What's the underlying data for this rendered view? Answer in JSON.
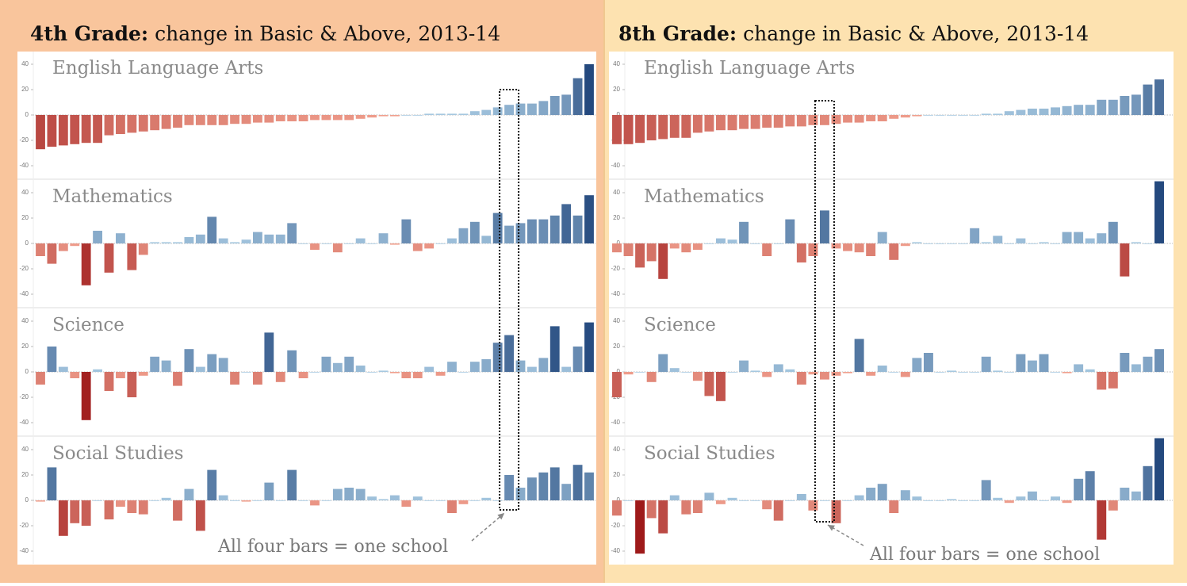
{
  "chart_data": [
    {
      "type": "bar",
      "heading_bold": "4th Grade:",
      "heading": "change in Basic & Above, 2013-14",
      "annotation": "All four bars = one school",
      "highlight_index": 41,
      "ylim": [
        -50,
        50
      ],
      "yticks": [
        -40,
        -20,
        0,
        20,
        40
      ],
      "negative_color": "#9e1a1a",
      "negative_light": "#f2a391",
      "positive_light": "#a9cbe3",
      "positive_color": "#24497e",
      "subplots": [
        {
          "title": "English Language Arts",
          "values": [
            -27,
            -25,
            -24,
            -23,
            -22,
            -22,
            -16,
            -15,
            -14,
            -13,
            -12,
            -11,
            -10,
            -8,
            -8,
            -8,
            -8,
            -7,
            -7,
            -6,
            -6,
            -5,
            -5,
            -5,
            -4,
            -4,
            -4,
            -4,
            -3,
            -2,
            -1,
            -1,
            0,
            0,
            1,
            1,
            1,
            1,
            3,
            4,
            6,
            8,
            9,
            9,
            11,
            15,
            16,
            29,
            40
          ]
        },
        {
          "title": "Mathematics",
          "values": [
            -10,
            -16,
            -6,
            -2,
            -33,
            10,
            -23,
            8,
            -21,
            -9,
            1,
            1,
            1,
            5,
            7,
            21,
            4,
            1,
            3,
            9,
            7,
            7,
            16,
            0,
            -5,
            0,
            -7,
            0,
            4,
            0,
            8,
            -1,
            19,
            -6,
            -4,
            0,
            4,
            12,
            17,
            6,
            24,
            14,
            16,
            19,
            19,
            22,
            31,
            22,
            38
          ]
        },
        {
          "title": "Science",
          "values": [
            -10,
            20,
            4,
            -5,
            -38,
            2,
            -15,
            -5,
            -20,
            -3,
            12,
            9,
            -11,
            18,
            4,
            14,
            11,
            -10,
            0,
            -10,
            31,
            -8,
            17,
            -5,
            0,
            12,
            7,
            12,
            5,
            0,
            1,
            -1,
            -5,
            -5,
            4,
            -3,
            8,
            0,
            8,
            10,
            23,
            29,
            9,
            4,
            11,
            36,
            4,
            20,
            39
          ]
        },
        {
          "title": "Social Studies",
          "values": [
            -1,
            26,
            -28,
            -18,
            -20,
            0,
            -15,
            -5,
            -10,
            -11,
            0,
            2,
            -16,
            9,
            -24,
            24,
            4,
            0,
            -1,
            0,
            14,
            0,
            24,
            0,
            -4,
            0,
            9,
            10,
            9,
            3,
            1,
            4,
            -5,
            3,
            0,
            0,
            -10,
            -3,
            0,
            2,
            0,
            20,
            10,
            18,
            22,
            26,
            13,
            28,
            22
          ]
        }
      ]
    },
    {
      "type": "bar",
      "heading_bold": "8th Grade:",
      "heading": "change in Basic & Above, 2013-14",
      "annotation": "All four bars = one school",
      "highlight_index": 18,
      "ylim": [
        -50,
        50
      ],
      "yticks": [
        -40,
        -20,
        0,
        20,
        40
      ],
      "negative_color": "#9e1a1a",
      "negative_light": "#f2a391",
      "positive_light": "#a9cbe3",
      "positive_color": "#24497e",
      "subplots": [
        {
          "title": "English Language Arts",
          "values": [
            -23,
            -23,
            -22,
            -20,
            -19,
            -18,
            -18,
            -14,
            -13,
            -12,
            -12,
            -11,
            -11,
            -10,
            -10,
            -9,
            -9,
            -8,
            -8,
            -7,
            -6,
            -6,
            -5,
            -5,
            -3,
            -2,
            -1,
            0,
            0,
            0,
            0,
            0,
            1,
            1,
            3,
            4,
            5,
            5,
            6,
            7,
            8,
            8,
            12,
            12,
            15,
            16,
            24,
            28
          ]
        },
        {
          "title": "Mathematics",
          "values": [
            -7,
            -10,
            -19,
            -14,
            -28,
            -4,
            -7,
            -5,
            0,
            4,
            3,
            17,
            0,
            -10,
            0,
            19,
            -15,
            -10,
            26,
            -4,
            -6,
            -7,
            -10,
            9,
            -13,
            -2,
            1,
            0,
            0,
            0,
            0,
            12,
            1,
            6,
            0,
            4,
            0,
            1,
            0,
            9,
            9,
            4,
            8,
            17,
            -26,
            1,
            0,
            49
          ]
        },
        {
          "title": "Science",
          "values": [
            -20,
            -2,
            0,
            -8,
            14,
            3,
            0,
            -7,
            -19,
            -23,
            0,
            9,
            1,
            -4,
            6,
            2,
            -10,
            -2,
            -6,
            -3,
            -1,
            26,
            -3,
            5,
            0,
            -4,
            11,
            15,
            0,
            1,
            0,
            0,
            12,
            1,
            0,
            14,
            9,
            14,
            0,
            -1,
            6,
            2,
            -14,
            -13,
            15,
            6,
            12,
            18
          ]
        },
        {
          "title": "Social Studies",
          "values": [
            -12,
            0,
            -42,
            -14,
            -26,
            4,
            -11,
            -10,
            6,
            -3,
            2,
            0,
            0,
            -7,
            -16,
            0,
            5,
            -8,
            0,
            -18,
            0,
            4,
            10,
            13,
            -10,
            8,
            3,
            0,
            0,
            1,
            0,
            0,
            16,
            2,
            -2,
            3,
            7,
            0,
            3,
            -2,
            17,
            23,
            -31,
            -8,
            10,
            7,
            27,
            49
          ]
        }
      ]
    }
  ]
}
